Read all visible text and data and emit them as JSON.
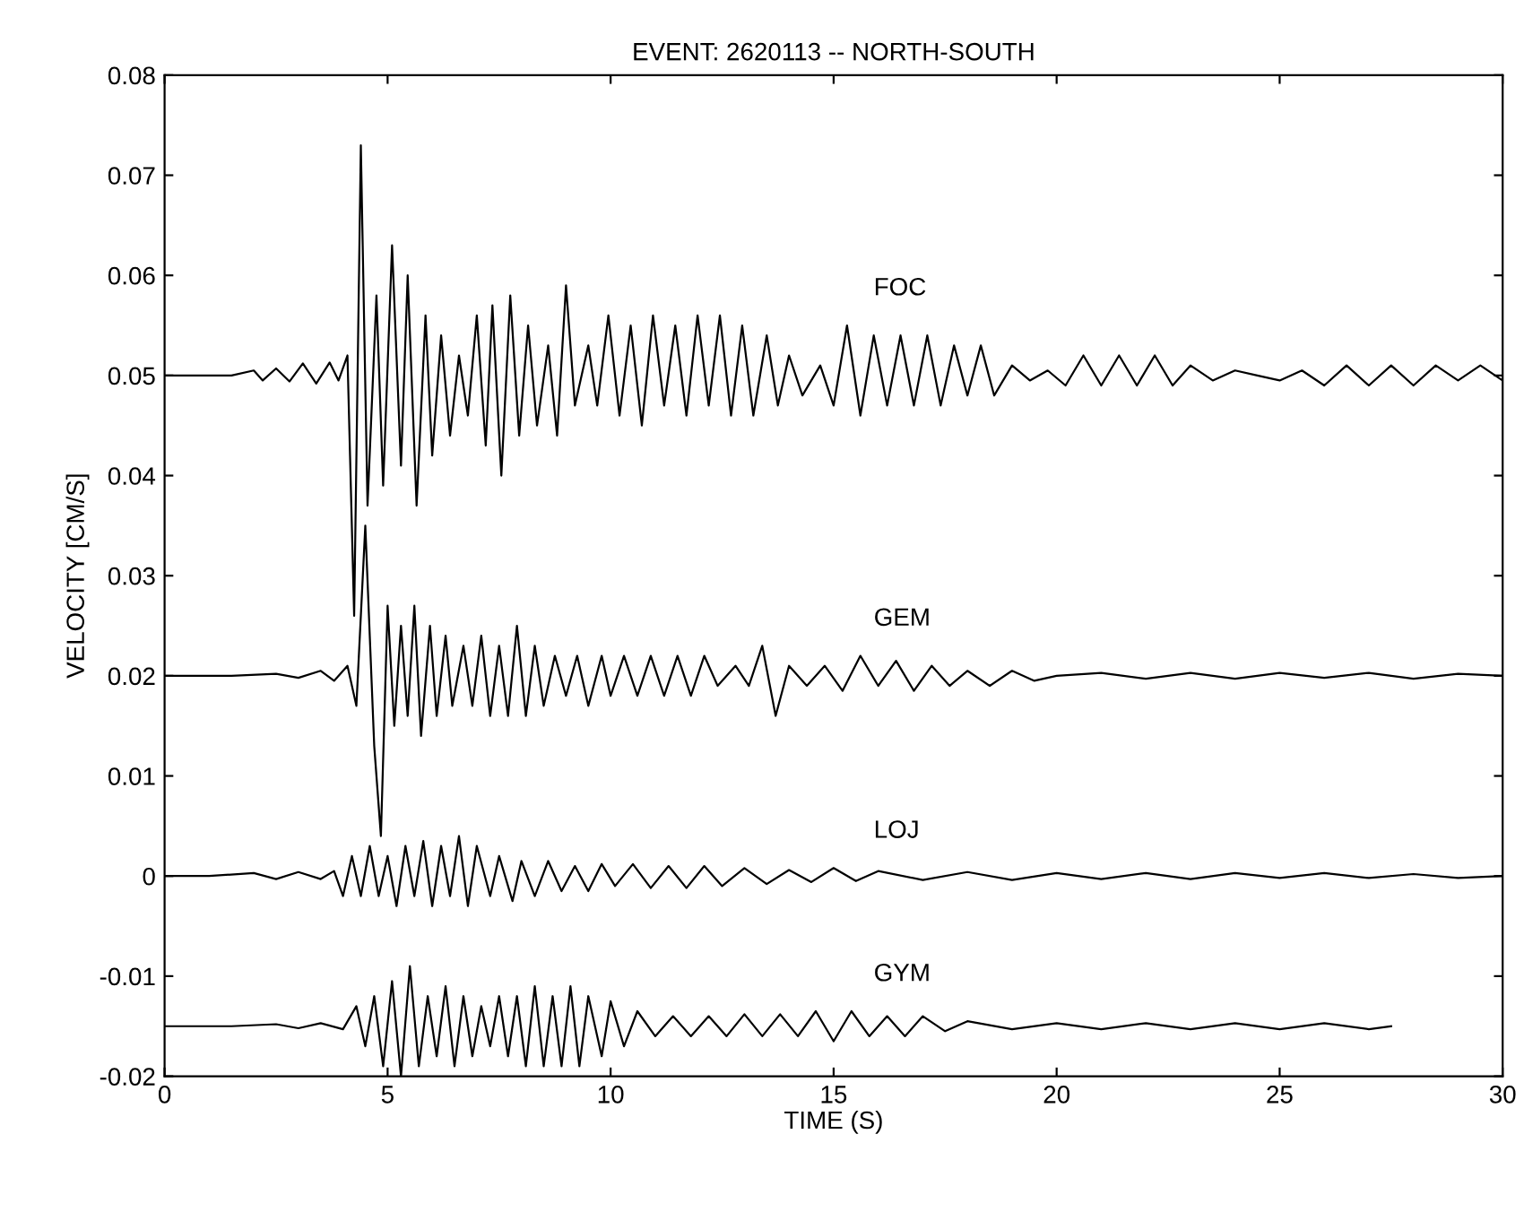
{
  "chart_data": {
    "type": "line",
    "title": "EVENT: 2620113 -- NORTH-SOUTH",
    "xlabel": "TIME (S)",
    "ylabel": "VELOCITY [CM/S]",
    "xlim": [
      0,
      30
    ],
    "ylim": [
      -0.02,
      0.08
    ],
    "xticks": [
      0,
      5,
      10,
      15,
      20,
      25,
      30
    ],
    "yticks": [
      -0.02,
      -0.01,
      0,
      0.01,
      0.02,
      0.03,
      0.04,
      0.05,
      0.06,
      0.07,
      0.08
    ],
    "grid": false,
    "legend": false,
    "marker": "none",
    "line_style": "solid",
    "series": [
      {
        "name": "FOC",
        "color": "#000000",
        "x": [
          0,
          1.5,
          2.0,
          2.2,
          2.5,
          2.8,
          3.1,
          3.4,
          3.7,
          3.9,
          4.1,
          4.25,
          4.4,
          4.55,
          4.75,
          4.9,
          5.1,
          5.3,
          5.45,
          5.65,
          5.85,
          6.0,
          6.2,
          6.4,
          6.6,
          6.8,
          7.0,
          7.2,
          7.35,
          7.55,
          7.75,
          7.95,
          8.15,
          8.35,
          8.6,
          8.8,
          9.0,
          9.2,
          9.5,
          9.7,
          9.95,
          10.2,
          10.45,
          10.7,
          10.95,
          11.2,
          11.45,
          11.7,
          11.95,
          12.2,
          12.45,
          12.7,
          12.95,
          13.2,
          13.5,
          13.75,
          14.0,
          14.3,
          14.7,
          15.0,
          15.3,
          15.6,
          15.9,
          16.2,
          16.5,
          16.8,
          17.1,
          17.4,
          17.7,
          18.0,
          18.3,
          18.6,
          19.0,
          19.4,
          19.8,
          20.2,
          20.6,
          21.0,
          21.4,
          21.8,
          22.2,
          22.6,
          23.0,
          23.5,
          24.0,
          24.5,
          25.0,
          25.5,
          26.0,
          26.5,
          27.0,
          27.5,
          28.0,
          28.5,
          29.0,
          29.5,
          30.0
        ],
        "values": [
          0.05,
          0.05,
          0.0505,
          0.0495,
          0.0507,
          0.0494,
          0.0512,
          0.0492,
          0.0513,
          0.0495,
          0.052,
          0.026,
          0.073,
          0.037,
          0.058,
          0.039,
          0.063,
          0.041,
          0.06,
          0.037,
          0.056,
          0.042,
          0.054,
          0.044,
          0.052,
          0.046,
          0.056,
          0.043,
          0.057,
          0.04,
          0.058,
          0.044,
          0.055,
          0.045,
          0.053,
          0.044,
          0.059,
          0.047,
          0.053,
          0.047,
          0.056,
          0.046,
          0.055,
          0.045,
          0.056,
          0.047,
          0.055,
          0.046,
          0.056,
          0.047,
          0.056,
          0.046,
          0.055,
          0.046,
          0.054,
          0.047,
          0.052,
          0.048,
          0.051,
          0.047,
          0.055,
          0.046,
          0.054,
          0.047,
          0.054,
          0.047,
          0.054,
          0.047,
          0.053,
          0.048,
          0.053,
          0.048,
          0.051,
          0.0495,
          0.0505,
          0.049,
          0.052,
          0.049,
          0.052,
          0.049,
          0.052,
          0.049,
          0.051,
          0.0495,
          0.0505,
          0.05,
          0.0495,
          0.0505,
          0.049,
          0.051,
          0.049,
          0.051,
          0.049,
          0.051,
          0.0495,
          0.051,
          0.0495
        ]
      },
      {
        "name": "GEM",
        "color": "#000000",
        "x": [
          0,
          1.5,
          2.5,
          3.0,
          3.5,
          3.8,
          4.1,
          4.3,
          4.5,
          4.7,
          4.85,
          5.0,
          5.15,
          5.3,
          5.45,
          5.6,
          5.75,
          5.95,
          6.1,
          6.3,
          6.45,
          6.7,
          6.9,
          7.1,
          7.3,
          7.5,
          7.7,
          7.9,
          8.1,
          8.3,
          8.5,
          8.75,
          9.0,
          9.25,
          9.5,
          9.8,
          10.0,
          10.3,
          10.6,
          10.9,
          11.2,
          11.5,
          11.8,
          12.1,
          12.4,
          12.8,
          13.1,
          13.4,
          13.7,
          14.0,
          14.4,
          14.8,
          15.2,
          15.6,
          16.0,
          16.4,
          16.8,
          17.2,
          17.6,
          18.0,
          18.5,
          19.0,
          19.5,
          20,
          21,
          22,
          23,
          24,
          25,
          26,
          27,
          28,
          29,
          30
        ],
        "values": [
          0.02,
          0.02,
          0.0202,
          0.0198,
          0.0205,
          0.0195,
          0.021,
          0.017,
          0.035,
          0.013,
          0.004,
          0.027,
          0.015,
          0.025,
          0.016,
          0.027,
          0.014,
          0.025,
          0.016,
          0.024,
          0.017,
          0.023,
          0.017,
          0.024,
          0.016,
          0.023,
          0.016,
          0.025,
          0.016,
          0.023,
          0.017,
          0.022,
          0.018,
          0.022,
          0.017,
          0.022,
          0.018,
          0.022,
          0.018,
          0.022,
          0.018,
          0.022,
          0.018,
          0.022,
          0.019,
          0.021,
          0.019,
          0.023,
          0.016,
          0.021,
          0.019,
          0.021,
          0.0185,
          0.022,
          0.019,
          0.0215,
          0.0185,
          0.021,
          0.019,
          0.0205,
          0.019,
          0.0205,
          0.0195,
          0.02,
          0.0203,
          0.0197,
          0.0203,
          0.0197,
          0.0203,
          0.0198,
          0.0203,
          0.0197,
          0.0202,
          0.02
        ]
      },
      {
        "name": "LOJ",
        "color": "#000000",
        "x": [
          0,
          1.0,
          2.0,
          2.5,
          3.0,
          3.5,
          3.8,
          4.0,
          4.2,
          4.4,
          4.6,
          4.8,
          5.0,
          5.2,
          5.4,
          5.6,
          5.8,
          6.0,
          6.2,
          6.4,
          6.6,
          6.8,
          7.0,
          7.3,
          7.5,
          7.8,
          8.0,
          8.3,
          8.6,
          8.9,
          9.2,
          9.5,
          9.8,
          10.1,
          10.5,
          10.9,
          11.3,
          11.7,
          12.1,
          12.5,
          13.0,
          13.5,
          14.0,
          14.5,
          15,
          15.5,
          16,
          17,
          18,
          19,
          20,
          21,
          22,
          23,
          24,
          25,
          26,
          27,
          28,
          29,
          30
        ],
        "values": [
          0,
          0,
          0.0003,
          -0.0003,
          0.0004,
          -0.0003,
          0.0005,
          -0.002,
          0.002,
          -0.002,
          0.003,
          -0.002,
          0.002,
          -0.003,
          0.003,
          -0.002,
          0.0035,
          -0.003,
          0.003,
          -0.002,
          0.004,
          -0.003,
          0.003,
          -0.002,
          0.002,
          -0.0025,
          0.0015,
          -0.002,
          0.0015,
          -0.0015,
          0.001,
          -0.0015,
          0.0012,
          -0.001,
          0.0012,
          -0.0012,
          0.001,
          -0.0012,
          0.001,
          -0.001,
          0.0008,
          -0.0008,
          0.0006,
          -0.0006,
          0.0008,
          -0.0005,
          0.0005,
          -0.0004,
          0.0004,
          -0.0004,
          0.0003,
          -0.0003,
          0.0003,
          -0.0003,
          0.0003,
          -0.0002,
          0.0003,
          -0.0002,
          0.0002,
          -0.0002,
          0
        ]
      },
      {
        "name": "GYM",
        "color": "#000000",
        "x": [
          0,
          1.5,
          2.5,
          3.0,
          3.5,
          4.0,
          4.3,
          4.5,
          4.7,
          4.9,
          5.1,
          5.3,
          5.5,
          5.7,
          5.9,
          6.1,
          6.3,
          6.5,
          6.7,
          6.9,
          7.1,
          7.3,
          7.5,
          7.7,
          7.9,
          8.1,
          8.3,
          8.5,
          8.7,
          8.9,
          9.1,
          9.3,
          9.5,
          9.8,
          10.0,
          10.3,
          10.6,
          11.0,
          11.4,
          11.8,
          12.2,
          12.6,
          13.0,
          13.4,
          13.8,
          14.2,
          14.6,
          15.0,
          15.4,
          15.8,
          16.2,
          16.6,
          17.0,
          17.5,
          18,
          19,
          20,
          21,
          22,
          23,
          24,
          25,
          26,
          27,
          27.5
        ],
        "values": [
          -0.015,
          -0.015,
          -0.0148,
          -0.0152,
          -0.0147,
          -0.0153,
          -0.013,
          -0.017,
          -0.012,
          -0.019,
          -0.0105,
          -0.02,
          -0.009,
          -0.019,
          -0.012,
          -0.018,
          -0.011,
          -0.019,
          -0.012,
          -0.018,
          -0.013,
          -0.017,
          -0.012,
          -0.018,
          -0.012,
          -0.019,
          -0.011,
          -0.019,
          -0.012,
          -0.019,
          -0.011,
          -0.019,
          -0.012,
          -0.018,
          -0.0125,
          -0.017,
          -0.0135,
          -0.016,
          -0.014,
          -0.016,
          -0.014,
          -0.016,
          -0.0138,
          -0.016,
          -0.0138,
          -0.016,
          -0.0135,
          -0.0165,
          -0.0135,
          -0.016,
          -0.014,
          -0.016,
          -0.014,
          -0.0155,
          -0.0145,
          -0.0153,
          -0.0147,
          -0.0153,
          -0.0147,
          -0.0153,
          -0.0147,
          -0.0153,
          -0.0147,
          -0.0153,
          -0.015
        ]
      }
    ]
  }
}
